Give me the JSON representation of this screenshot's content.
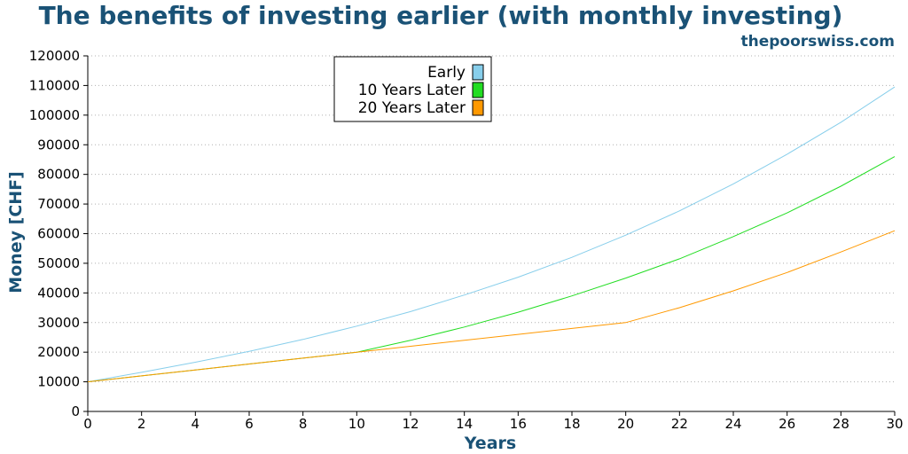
{
  "chart_data": {
    "type": "line",
    "title": "The benefits of investing earlier (with monthly investing)",
    "subtitle": "thepoorswiss.com",
    "xlabel": "Years",
    "ylabel": "Money [CHF]",
    "xlim": [
      0,
      30
    ],
    "ylim": [
      0,
      120000
    ],
    "xticks": [
      0,
      2,
      4,
      6,
      8,
      10,
      12,
      14,
      16,
      18,
      20,
      22,
      24,
      26,
      28,
      30
    ],
    "yticks": [
      0,
      10000,
      20000,
      30000,
      40000,
      50000,
      60000,
      70000,
      80000,
      90000,
      100000,
      110000,
      120000
    ],
    "grid": "horizontal dotted",
    "legend_position": "top-center",
    "title_color": "#1a5276",
    "series": [
      {
        "name": "Early",
        "color": "#87ceeb",
        "x": [
          0,
          2,
          4,
          6,
          8,
          10,
          12,
          14,
          16,
          18,
          20,
          22,
          24,
          26,
          28,
          30
        ],
        "y": [
          10000,
          13200,
          16600,
          20300,
          24300,
          28800,
          33700,
          39300,
          45300,
          52000,
          59500,
          67700,
          76800,
          86800,
          97600,
          109500
        ]
      },
      {
        "name": "10 Years Later",
        "color": "#22dd22",
        "x": [
          0,
          2,
          4,
          6,
          8,
          10,
          12,
          14,
          16,
          18,
          20,
          22,
          24,
          26,
          28,
          30
        ],
        "y": [
          10000,
          12000,
          14000,
          16000,
          18000,
          20000,
          24000,
          28500,
          33500,
          39000,
          45000,
          51500,
          59000,
          67000,
          76000,
          86000
        ]
      },
      {
        "name": "20 Years Later",
        "color": "#ff9900",
        "x": [
          0,
          2,
          4,
          6,
          8,
          10,
          12,
          14,
          16,
          18,
          20,
          22,
          24,
          26,
          28,
          30
        ],
        "y": [
          10000,
          12000,
          14000,
          16000,
          18000,
          20000,
          22000,
          24000,
          26000,
          28000,
          30000,
          35000,
          40700,
          46900,
          53800,
          61000
        ]
      }
    ]
  }
}
